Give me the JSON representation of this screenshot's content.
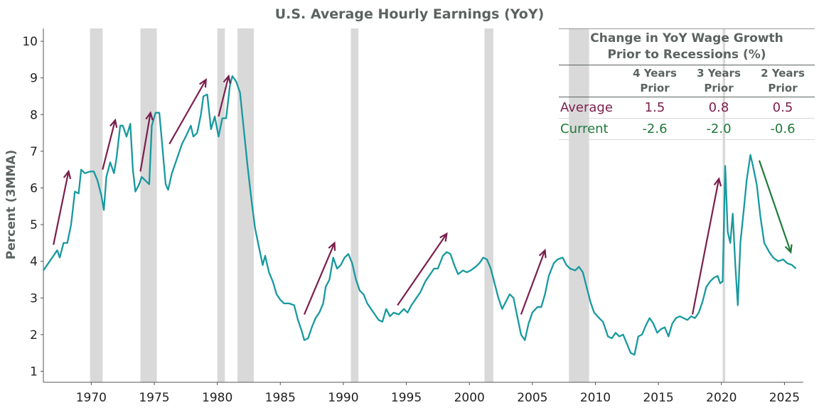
{
  "chart_data": {
    "type": "line",
    "title": "U.S. Average Hourly Earnings (YoY)",
    "ylabel": "Percent (3MMA)",
    "xlabel": "",
    "xlim": [
      1966.2,
      2026.5
    ],
    "ylim": [
      0.7,
      10.35
    ],
    "x_ticks": [
      1970,
      1975,
      1980,
      1985,
      1990,
      1995,
      2000,
      2005,
      2010,
      2015,
      2020,
      2025
    ],
    "y_ticks": [
      1,
      2,
      3,
      4,
      5,
      6,
      7,
      8,
      9,
      10
    ],
    "grid": false,
    "line_color": "#17999f",
    "series": [
      {
        "values": [
          [
            1966.2,
            3.75
          ],
          [
            1966.6,
            3.95
          ],
          [
            1967.0,
            4.15
          ],
          [
            1967.3,
            4.3
          ],
          [
            1967.5,
            4.1
          ],
          [
            1967.8,
            4.5
          ],
          [
            1968.1,
            4.5
          ],
          [
            1968.4,
            5.0
          ],
          [
            1968.7,
            5.9
          ],
          [
            1969.0,
            5.85
          ],
          [
            1969.2,
            6.5
          ],
          [
            1969.5,
            6.4
          ],
          [
            1969.9,
            6.45
          ],
          [
            1970.2,
            6.45
          ],
          [
            1970.5,
            6.2
          ],
          [
            1970.8,
            5.8
          ],
          [
            1971.0,
            5.4
          ],
          [
            1971.2,
            6.3
          ],
          [
            1971.5,
            6.7
          ],
          [
            1971.8,
            6.4
          ],
          [
            1972.0,
            6.8
          ],
          [
            1972.3,
            7.7
          ],
          [
            1972.5,
            7.7
          ],
          [
            1972.8,
            7.4
          ],
          [
            1973.1,
            7.75
          ],
          [
            1973.3,
            6.5
          ],
          [
            1973.5,
            5.9
          ],
          [
            1973.8,
            6.1
          ],
          [
            1974.0,
            6.3
          ],
          [
            1974.3,
            6.2
          ],
          [
            1974.6,
            6.1
          ],
          [
            1974.8,
            7.7
          ],
          [
            1975.1,
            8.05
          ],
          [
            1975.4,
            8.05
          ],
          [
            1975.6,
            7.3
          ],
          [
            1975.9,
            6.1
          ],
          [
            1976.1,
            5.95
          ],
          [
            1976.4,
            6.4
          ],
          [
            1976.8,
            6.8
          ],
          [
            1977.2,
            7.2
          ],
          [
            1977.5,
            7.4
          ],
          [
            1977.9,
            7.7
          ],
          [
            1978.1,
            7.4
          ],
          [
            1978.4,
            7.5
          ],
          [
            1978.7,
            8.0
          ],
          [
            1978.9,
            8.5
          ],
          [
            1979.2,
            8.55
          ],
          [
            1979.5,
            7.6
          ],
          [
            1979.8,
            7.95
          ],
          [
            1980.1,
            7.4
          ],
          [
            1980.4,
            7.9
          ],
          [
            1980.7,
            7.9
          ],
          [
            1981.0,
            8.8
          ],
          [
            1981.2,
            9.05
          ],
          [
            1981.5,
            8.9
          ],
          [
            1981.8,
            8.6
          ],
          [
            1982.1,
            7.6
          ],
          [
            1982.4,
            6.6
          ],
          [
            1982.7,
            5.7
          ],
          [
            1983.0,
            4.9
          ],
          [
            1983.3,
            4.4
          ],
          [
            1983.6,
            3.9
          ],
          [
            1983.8,
            4.15
          ],
          [
            1984.1,
            3.7
          ],
          [
            1984.4,
            3.45
          ],
          [
            1984.7,
            3.1
          ],
          [
            1985.0,
            2.95
          ],
          [
            1985.3,
            2.85
          ],
          [
            1985.7,
            2.85
          ],
          [
            1986.1,
            2.8
          ],
          [
            1986.4,
            2.4
          ],
          [
            1986.7,
            2.1
          ],
          [
            1986.9,
            1.85
          ],
          [
            1987.2,
            1.9
          ],
          [
            1987.5,
            2.2
          ],
          [
            1987.8,
            2.45
          ],
          [
            1988.1,
            2.6
          ],
          [
            1988.4,
            2.85
          ],
          [
            1988.6,
            3.3
          ],
          [
            1988.9,
            3.5
          ],
          [
            1989.2,
            4.1
          ],
          [
            1989.5,
            3.8
          ],
          [
            1989.8,
            3.9
          ],
          [
            1990.1,
            4.1
          ],
          [
            1990.4,
            4.2
          ],
          [
            1990.7,
            3.95
          ],
          [
            1991.0,
            3.5
          ],
          [
            1991.3,
            3.2
          ],
          [
            1991.6,
            3.1
          ],
          [
            1991.9,
            2.85
          ],
          [
            1992.2,
            2.7
          ],
          [
            1992.5,
            2.55
          ],
          [
            1992.8,
            2.4
          ],
          [
            1993.1,
            2.35
          ],
          [
            1993.4,
            2.7
          ],
          [
            1993.7,
            2.5
          ],
          [
            1994.0,
            2.6
          ],
          [
            1994.4,
            2.55
          ],
          [
            1994.8,
            2.7
          ],
          [
            1995.1,
            2.6
          ],
          [
            1995.4,
            2.8
          ],
          [
            1995.8,
            3.0
          ],
          [
            1996.1,
            3.15
          ],
          [
            1996.5,
            3.45
          ],
          [
            1996.8,
            3.6
          ],
          [
            1997.2,
            3.8
          ],
          [
            1997.5,
            3.8
          ],
          [
            1997.9,
            4.15
          ],
          [
            1998.2,
            4.25
          ],
          [
            1998.5,
            4.2
          ],
          [
            1998.8,
            3.9
          ],
          [
            1999.1,
            3.65
          ],
          [
            1999.5,
            3.75
          ],
          [
            1999.8,
            3.7
          ],
          [
            2000.1,
            3.75
          ],
          [
            2000.5,
            3.85
          ],
          [
            2000.8,
            3.95
          ],
          [
            2001.1,
            4.1
          ],
          [
            2001.4,
            4.05
          ],
          [
            2001.7,
            3.8
          ],
          [
            2002.0,
            3.4
          ],
          [
            2002.3,
            3.0
          ],
          [
            2002.6,
            2.7
          ],
          [
            2002.9,
            2.9
          ],
          [
            2003.2,
            3.1
          ],
          [
            2003.5,
            3.0
          ],
          [
            2003.8,
            2.5
          ],
          [
            2004.1,
            2.0
          ],
          [
            2004.4,
            1.85
          ],
          [
            2004.7,
            2.3
          ],
          [
            2005.0,
            2.6
          ],
          [
            2005.4,
            2.75
          ],
          [
            2005.7,
            2.75
          ],
          [
            2006.0,
            3.1
          ],
          [
            2006.3,
            3.6
          ],
          [
            2006.7,
            3.95
          ],
          [
            2007.0,
            4.05
          ],
          [
            2007.4,
            4.1
          ],
          [
            2007.7,
            3.9
          ],
          [
            2008.0,
            3.8
          ],
          [
            2008.4,
            3.75
          ],
          [
            2008.7,
            3.85
          ],
          [
            2009.0,
            3.7
          ],
          [
            2009.3,
            3.3
          ],
          [
            2009.6,
            2.9
          ],
          [
            2009.9,
            2.6
          ],
          [
            2010.3,
            2.45
          ],
          [
            2010.6,
            2.35
          ],
          [
            2011.0,
            1.95
          ],
          [
            2011.3,
            1.9
          ],
          [
            2011.6,
            2.05
          ],
          [
            2011.9,
            1.95
          ],
          [
            2012.2,
            2.0
          ],
          [
            2012.5,
            1.75
          ],
          [
            2012.8,
            1.5
          ],
          [
            2013.1,
            1.45
          ],
          [
            2013.4,
            1.95
          ],
          [
            2013.7,
            2.0
          ],
          [
            2014.0,
            2.25
          ],
          [
            2014.3,
            2.45
          ],
          [
            2014.6,
            2.3
          ],
          [
            2014.9,
            2.05
          ],
          [
            2015.2,
            2.15
          ],
          [
            2015.5,
            2.2
          ],
          [
            2015.8,
            1.95
          ],
          [
            2016.1,
            2.3
          ],
          [
            2016.4,
            2.45
          ],
          [
            2016.7,
            2.5
          ],
          [
            2017.0,
            2.45
          ],
          [
            2017.3,
            2.4
          ],
          [
            2017.6,
            2.5
          ],
          [
            2017.9,
            2.45
          ],
          [
            2018.2,
            2.6
          ],
          [
            2018.5,
            2.9
          ],
          [
            2018.8,
            3.3
          ],
          [
            2019.1,
            3.45
          ],
          [
            2019.4,
            3.55
          ],
          [
            2019.7,
            3.6
          ],
          [
            2019.9,
            3.4
          ],
          [
            2020.1,
            3.45
          ],
          [
            2020.3,
            6.6
          ],
          [
            2020.5,
            4.8
          ],
          [
            2020.7,
            4.5
          ],
          [
            2020.9,
            5.3
          ],
          [
            2021.1,
            3.9
          ],
          [
            2021.3,
            2.8
          ],
          [
            2021.5,
            4.5
          ],
          [
            2021.8,
            5.5
          ],
          [
            2022.0,
            6.2
          ],
          [
            2022.3,
            6.9
          ],
          [
            2022.5,
            6.6
          ],
          [
            2022.8,
            6.1
          ],
          [
            2023.1,
            5.2
          ],
          [
            2023.4,
            4.5
          ],
          [
            2023.8,
            4.25
          ],
          [
            2024.1,
            4.1
          ],
          [
            2024.5,
            4.0
          ],
          [
            2024.9,
            4.05
          ],
          [
            2025.2,
            3.95
          ],
          [
            2025.6,
            3.9
          ],
          [
            2025.9,
            3.8
          ]
        ]
      }
    ],
    "recessions": [
      [
        1969.9,
        1970.9
      ],
      [
        1973.9,
        1975.2
      ],
      [
        1980.0,
        1980.6
      ],
      [
        1981.6,
        1982.9
      ],
      [
        1990.6,
        1991.2
      ],
      [
        2001.2,
        2001.9
      ],
      [
        2007.9,
        2009.5
      ],
      [
        2020.1,
        2020.3
      ]
    ],
    "recession_color": "#d9d9d9",
    "arrows_up": [
      [
        [
          1967.0,
          4.45
        ],
        [
          1968.2,
          6.45
        ]
      ],
      [
        [
          1970.9,
          6.5
        ],
        [
          1971.9,
          7.85
        ]
      ],
      [
        [
          1973.9,
          6.45
        ],
        [
          1974.7,
          8.05
        ]
      ],
      [
        [
          1976.2,
          7.2
        ],
        [
          1979.1,
          8.95
        ]
      ],
      [
        [
          1980.1,
          7.95
        ],
        [
          1980.9,
          9.05
        ]
      ],
      [
        [
          1986.9,
          2.55
        ],
        [
          1989.3,
          4.5
        ]
      ],
      [
        [
          1994.3,
          2.8
        ],
        [
          1998.2,
          4.75
        ]
      ],
      [
        [
          2004.1,
          2.55
        ],
        [
          2006.0,
          4.3
        ]
      ],
      [
        [
          2017.7,
          2.55
        ],
        [
          2019.8,
          6.25
        ]
      ]
    ],
    "arrow_up_color": "#7b1f4c",
    "arrows_down": [
      [
        [
          2023.0,
          6.75
        ],
        [
          2025.5,
          4.25
        ]
      ]
    ],
    "arrow_down_color": "#1f7a3a"
  },
  "inset_table": {
    "title_line1": "Change in YoY Wage Growth",
    "title_line2": "Prior to Recessions (%)",
    "columns": [
      {
        "line1": "4 Years",
        "line2": "Prior"
      },
      {
        "line1": "3 Years",
        "line2": "Prior"
      },
      {
        "line1": "2 Years",
        "line2": "Prior"
      }
    ],
    "rows": [
      {
        "label": "Average",
        "values": [
          "1.5",
          "0.8",
          "0.5"
        ],
        "color": "#7b1f4c"
      },
      {
        "label": "Current",
        "values": [
          "-2.6",
          "-2.0",
          "-0.6"
        ],
        "color": "#1f7a3a"
      }
    ]
  }
}
